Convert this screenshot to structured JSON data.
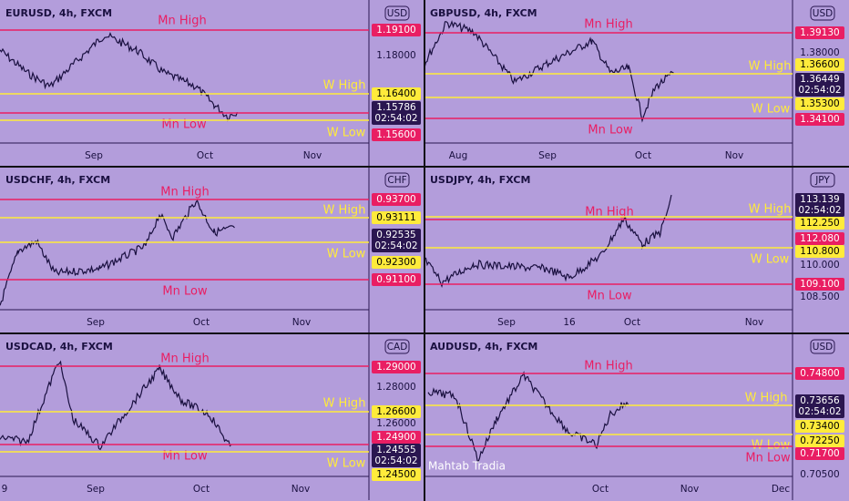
{
  "panels": [
    {
      "title": "EURUSD, 4h, FXCM",
      "currency": "USD",
      "levels": [
        {
          "label": "Mn High",
          "price": "1.19100"
        },
        {
          "label": "W High",
          "price": "1.16400"
        },
        {
          "label": "Mn Low",
          "price": "1.15600"
        },
        {
          "label": "W Low"
        }
      ],
      "ticks": [
        "1.18000"
      ],
      "current": {
        "price": "1.15786",
        "countdown": "02:54:02"
      },
      "time_labels": [
        "Sep",
        "Oct",
        "Nov"
      ]
    },
    {
      "title": "GBPUSD, 4h, FXCM",
      "currency": "USD",
      "levels": [
        {
          "label": "Mn High",
          "price": "1.39130"
        },
        {
          "label": "W High",
          "price": "1.36600"
        },
        {
          "label": "W Low",
          "price": "1.35300"
        },
        {
          "label": "Mn Low",
          "price": "1.34100"
        }
      ],
      "ticks": [
        "1.38000"
      ],
      "current": {
        "price": "1.36449",
        "countdown": "02:54:02"
      },
      "time_labels": [
        "Aug",
        "Sep",
        "Oct",
        "Nov"
      ]
    },
    {
      "title": "USDCHF, 4h, FXCM",
      "currency": "CHF",
      "levels": [
        {
          "label": "Mn High",
          "price": "0.93700"
        },
        {
          "label": "W High",
          "price": "0.93111"
        },
        {
          "label": "W Low",
          "price": "0.92300"
        },
        {
          "label": "Mn Low",
          "price": "0.91100"
        }
      ],
      "ticks": [],
      "current": {
        "price": "0.92535",
        "countdown": "02:54:02"
      },
      "time_labels": [
        "Sep",
        "Oct",
        "Nov"
      ]
    },
    {
      "title": "USDJPY, 4h, FXCM",
      "currency": "JPY",
      "levels": [
        {
          "label": "Mn High",
          "price": "112.080"
        },
        {
          "label": "W High",
          "price": "112.250"
        },
        {
          "label": "W Low",
          "price": "110.800"
        },
        {
          "label": "Mn Low",
          "price": "109.100"
        }
      ],
      "ticks": [
        "110.000",
        "108.500"
      ],
      "current": {
        "price": "113.139",
        "countdown": "02:54:02"
      },
      "time_labels": [
        "Sep",
        "16",
        "Oct",
        "Nov"
      ]
    },
    {
      "title": "USDCAD, 4h, FXCM",
      "currency": "CAD",
      "levels": [
        {
          "label": "Mn High",
          "price": "1.29000"
        },
        {
          "label": "W High",
          "price": "1.26600"
        },
        {
          "label": "Mn Low",
          "price": "1.24900"
        },
        {
          "label": "W Low",
          "price": "1.24500"
        }
      ],
      "ticks": [
        "1.28000",
        "1.26000"
      ],
      "current": {
        "price": "1.24555",
        "countdown": "02:54:02"
      },
      "time_labels": [
        "9",
        "Sep",
        "Oct",
        "Nov"
      ]
    },
    {
      "title": "AUDUSD, 4h, FXCM",
      "currency": "USD",
      "levels": [
        {
          "label": "Mn High",
          "price": "0.74800"
        },
        {
          "label": "W High",
          "price": "0.73400"
        },
        {
          "label": "W Low",
          "price": "0.72250"
        },
        {
          "label": "Mn Low",
          "price": "0.71700"
        }
      ],
      "ticks": [
        "0.70500"
      ],
      "current": {
        "price": "0.73656",
        "countdown": "02:54:02"
      },
      "time_labels": [
        "Oct",
        "Nov",
        "Dec"
      ]
    }
  ],
  "watermark": "Mahtab Tradia"
}
